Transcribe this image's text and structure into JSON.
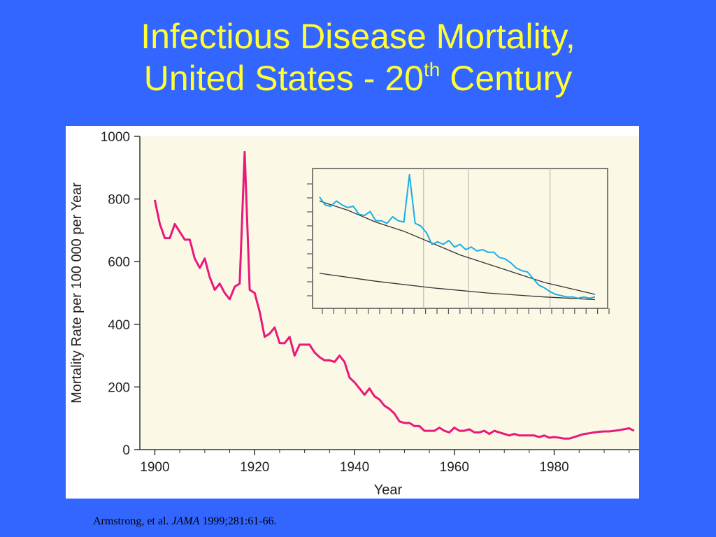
{
  "title": {
    "line1": "Infectious Disease Mortality,",
    "line2_prefix": "United States - 20",
    "line2_sup": "th",
    "line2_suffix": " Century"
  },
  "citation": {
    "authors": "Armstrong, et al.",
    "journal": "JAMA",
    "details": "1999;281:61-66."
  },
  "colors": {
    "background": "#3366FF",
    "title": "#FFFF33",
    "plot_bg": "#FBF8E6",
    "main_line": "#E8197A",
    "inset_line": "#1AAEE6",
    "trend_line": "#333333"
  },
  "chart_data": [
    {
      "type": "line",
      "xlabel": "Year",
      "ylabel": "Mortality Rate per 100 000 per Year",
      "xlim": [
        1897,
        1997
      ],
      "ylim": [
        0,
        1000
      ],
      "x_ticks": [
        "1900",
        "1920",
        "1940",
        "1960",
        "1980"
      ],
      "y_ticks": [
        "0",
        "200",
        "400",
        "600",
        "800",
        "1000"
      ],
      "grid": false,
      "series": [
        {
          "x": [
            1900,
            1901,
            1902,
            1903,
            1904,
            1905,
            1906,
            1907,
            1908,
            1909,
            1910,
            1911,
            1912,
            1913,
            1914,
            1915,
            1916,
            1917,
            1918,
            1919,
            1920,
            1921,
            1922,
            1923,
            1924,
            1925,
            1926,
            1927,
            1928,
            1929,
            1930,
            1931,
            1932,
            1933,
            1934,
            1935,
            1936,
            1937,
            1938,
            1939,
            1940,
            1941,
            1942,
            1943,
            1944,
            1945,
            1946,
            1947,
            1948,
            1949,
            1950,
            1951,
            1952,
            1953,
            1954,
            1955,
            1956,
            1957,
            1958,
            1959,
            1960,
            1961,
            1962,
            1963,
            1964,
            1965,
            1966,
            1967,
            1968,
            1969,
            1970,
            1971,
            1972,
            1973,
            1974,
            1975,
            1976,
            1977,
            1978,
            1979,
            1980,
            1981,
            1982,
            1983,
            1984,
            1985,
            1986,
            1987,
            1988,
            1989,
            1990,
            1991,
            1992,
            1993,
            1994,
            1995,
            1996
          ],
          "y": [
            797,
            720,
            675,
            675,
            720,
            695,
            670,
            670,
            610,
            580,
            610,
            550,
            510,
            530,
            500,
            480,
            520,
            530,
            950,
            510,
            500,
            440,
            360,
            370,
            390,
            340,
            340,
            360,
            300,
            335,
            335,
            335,
            310,
            295,
            285,
            285,
            280,
            300,
            280,
            230,
            215,
            195,
            175,
            195,
            170,
            160,
            140,
            130,
            115,
            90,
            85,
            85,
            75,
            75,
            60,
            60,
            60,
            70,
            60,
            55,
            70,
            60,
            60,
            65,
            55,
            55,
            60,
            50,
            60,
            55,
            50,
            45,
            50,
            45,
            45,
            45,
            45,
            40,
            45,
            38,
            40,
            38,
            35,
            35,
            40,
            45,
            50,
            52,
            55,
            57,
            58,
            58,
            60,
            62,
            65,
            68,
            60
          ]
        }
      ]
    },
    {
      "type": "line",
      "xlim": [
        0,
        50
      ],
      "ylim": [
        0,
        100
      ],
      "grid": true,
      "series": [
        {
          "x": [
            0,
            1,
            2,
            3,
            4,
            5,
            6,
            7,
            8,
            9,
            10,
            11,
            12,
            13,
            14,
            15,
            16,
            17,
            18,
            19,
            20,
            21,
            22,
            23,
            24,
            25,
            26,
            27,
            28,
            29,
            30,
            31,
            32,
            33,
            34,
            35,
            36,
            37,
            38,
            39,
            40,
            41,
            42,
            43,
            44,
            45,
            46,
            47,
            48,
            49
          ],
          "y": [
            82,
            76,
            75,
            79,
            76,
            74,
            75,
            69,
            68,
            71,
            64,
            64,
            62,
            67,
            64,
            63,
            99,
            62,
            60,
            55,
            46,
            48,
            46,
            49,
            44,
            46,
            42,
            44,
            41,
            42,
            40,
            40,
            36,
            35,
            32,
            28,
            26,
            25,
            20,
            15,
            13,
            10,
            8,
            7,
            6,
            6,
            5,
            6,
            5,
            6
          ]
        },
        {
          "x": [
            0,
            5,
            10,
            15,
            20,
            25,
            30,
            35,
            40,
            45,
            49
          ],
          "y": [
            79,
            72,
            63,
            56,
            47,
            38,
            31,
            24,
            17,
            12,
            8
          ]
        },
        {
          "x": [
            0,
            10,
            20,
            30,
            40,
            49
          ],
          "y": [
            24,
            18,
            13,
            9,
            6,
            4
          ]
        }
      ]
    }
  ]
}
